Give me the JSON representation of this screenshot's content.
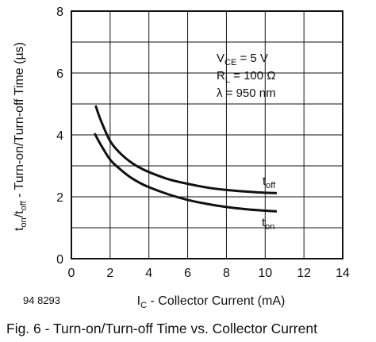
{
  "chart_data": {
    "type": "line",
    "ylabel": {
      "t": "t",
      "on": "on",
      "slash_t": "/t",
      "off": "off",
      "rest": " - Turn-on/Turn-off Time (µs)"
    },
    "xlabel": {
      "I": "I",
      "C": "C",
      "rest": " - Collector Current (mA)"
    },
    "xlim": [
      0,
      14
    ],
    "ylim": [
      0,
      8
    ],
    "xticks": [
      "0",
      "2",
      "4",
      "6",
      "8",
      "10",
      "12",
      "14"
    ],
    "yticks": [
      "0",
      "2",
      "4",
      "6",
      "8"
    ],
    "grid": true,
    "series": [
      {
        "name": "toff",
        "label_main": "t",
        "label_sub": "off",
        "x": [
          1.25,
          1.5,
          2,
          2.5,
          3,
          3.5,
          4,
          5,
          6,
          7,
          8,
          9,
          10,
          10.6
        ],
        "y": [
          4.95,
          4.5,
          3.8,
          3.42,
          3.15,
          2.95,
          2.8,
          2.57,
          2.42,
          2.3,
          2.22,
          2.17,
          2.13,
          2.12
        ]
      },
      {
        "name": "ton",
        "label_main": "t",
        "label_sub": "on",
        "x": [
          1.2,
          1.5,
          2,
          2.5,
          3,
          3.5,
          4,
          5,
          6,
          7,
          8,
          9,
          10,
          10.6
        ],
        "y": [
          4.05,
          3.7,
          3.2,
          2.9,
          2.65,
          2.46,
          2.31,
          2.08,
          1.9,
          1.77,
          1.67,
          1.6,
          1.55,
          1.53
        ]
      }
    ],
    "annotations": [
      {
        "main": "V",
        "sub": "CE",
        "rest": " = 5 V"
      },
      {
        "main": "R",
        "sub": "L",
        "rest": " = 100 Ω"
      },
      {
        "main": "λ",
        "sub": "",
        "rest": " = 950 nm"
      }
    ],
    "figure_id": "94 8293",
    "caption": "Fig. 6 - Turn-on/Turn-off Time vs. Collector Current"
  }
}
